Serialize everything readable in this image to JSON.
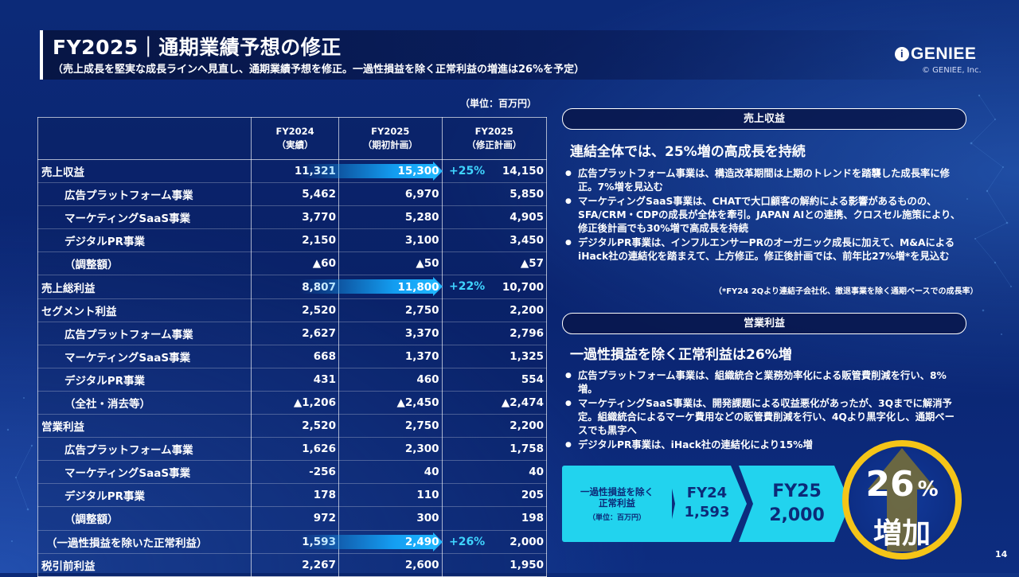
{
  "header": {
    "title": "FY2025｜通期業績予想の修正",
    "subtitle": "（売上成長を堅実な成長ラインへ見直し、通期業績予想を修正。一過性損益を除く正常利益の増進は26%を予定）"
  },
  "logo": {
    "text": "GENIEE",
    "copyright": "© GENIEE, Inc."
  },
  "table": {
    "unit": "（単位：百万円）",
    "headers": [
      {
        "l1": "FY2024",
        "l2": "（実績）"
      },
      {
        "l1": "FY2025",
        "l2": "（期初計画）"
      },
      {
        "l1": "FY2025",
        "l2": "（修正計画）"
      }
    ],
    "rows": [
      {
        "label": "売上収益",
        "v": [
          "11,321",
          "15,300",
          "14,150"
        ],
        "major": true,
        "sub": false,
        "growth": "+25%"
      },
      {
        "label": "広告プラットフォーム事業",
        "v": [
          "5,462",
          "6,970",
          "5,850"
        ],
        "major": false,
        "sub": true
      },
      {
        "label": "マーケティングSaaS事業",
        "v": [
          "3,770",
          "5,280",
          "4,905"
        ],
        "major": false,
        "sub": true
      },
      {
        "label": "デジタルPR事業",
        "v": [
          "2,150",
          "3,100",
          "3,450"
        ],
        "major": false,
        "sub": true
      },
      {
        "label": "（調整額）",
        "v": [
          "▲60",
          "▲50",
          "▲57"
        ],
        "major": false,
        "sub": true
      },
      {
        "label": "売上総利益",
        "v": [
          "8,807",
          "11,800",
          "10,700"
        ],
        "major": true,
        "sub": false,
        "growth": "+22%"
      },
      {
        "label": "セグメント利益",
        "v": [
          "2,520",
          "2,750",
          "2,200"
        ],
        "major": true,
        "sub": false
      },
      {
        "label": "広告プラットフォーム事業",
        "v": [
          "2,627",
          "3,370",
          "2,796"
        ],
        "major": false,
        "sub": true
      },
      {
        "label": "マーケティングSaaS事業",
        "v": [
          "668",
          "1,370",
          "1,325"
        ],
        "major": false,
        "sub": true
      },
      {
        "label": "デジタルPR事業",
        "v": [
          "431",
          "460",
          "554"
        ],
        "major": false,
        "sub": true
      },
      {
        "label": "（全社・消去等）",
        "v": [
          "▲1,206",
          "▲2,450",
          "▲2,474"
        ],
        "major": false,
        "sub": true
      },
      {
        "label": "営業利益",
        "v": [
          "2,520",
          "2,750",
          "2,200"
        ],
        "major": true,
        "sub": false
      },
      {
        "label": "広告プラットフォーム事業",
        "v": [
          "1,626",
          "2,300",
          "1,758"
        ],
        "major": false,
        "sub": true
      },
      {
        "label": "マーケティングSaaS事業",
        "v": [
          "-256",
          "40",
          "40"
        ],
        "major": false,
        "sub": true
      },
      {
        "label": "デジタルPR事業",
        "v": [
          "178",
          "110",
          "205"
        ],
        "major": false,
        "sub": true
      },
      {
        "label": "（調整額）",
        "v": [
          "972",
          "300",
          "198"
        ],
        "major": false,
        "sub": true
      },
      {
        "label": "（一過性損益を除いた正常利益）",
        "v": [
          "1,593",
          "2,490",
          "2,000"
        ],
        "major": true,
        "sub": false,
        "growth": "+26%",
        "indentSmall": true
      },
      {
        "label": "税引前利益",
        "v": [
          "2,267",
          "2,600",
          "1,950"
        ],
        "major": true,
        "sub": false
      }
    ]
  },
  "revenue": {
    "pill": "売上収益",
    "lead": "連結全体では、25%増の高成長を持続",
    "bullets": [
      "広告プラットフォーム事業は、構造改革期間は上期のトレンドを踏襲した成長率に修正。7%増を見込む",
      "マーケティングSaaS事業は、CHATで大口顧客の解約による影響があるものの、SFA/CRM・CDPの成長が全体を牽引。JAPAN AIとの連携、クロスセル施策により、修正後計画でも30%増で高成長を持続",
      "デジタルPR事業は、インフルエンサーPRのオーガニック成長に加えて、M&AによるiHack社の連結化を踏まえて、上方修正。修正後計画では、前年比27%増*を見込む"
    ],
    "note": "（*FY24 2Qより連結子会社化、撤退事業を除く通期ベースでの成長率）"
  },
  "operating": {
    "pill": "営業利益",
    "lead": "一過性損益を除く正常利益は26%増",
    "bullets": [
      "広告プラットフォーム事業は、組織統合と業務効率化による販管費削減を行い、8%増。",
      "マーケティングSaaS事業は、開発課題による収益悪化があったが、3Qまでに解消予定。組織統合によるマーケ費用などの販管費削減を行い、4Qより黒字化し、通期ベースでも黒字へ",
      "デジタルPR事業は、iHack社の連結化により15%増"
    ]
  },
  "kpi": {
    "label_l1": "一過性損益を除く",
    "label_l2": "正常利益",
    "label_unit": "（単位：百万円）",
    "fy24_label": "FY24",
    "fy24_value": "1,593",
    "fy25_label": "FY25",
    "fy25_value": "2,000",
    "circle_num": "26",
    "circle_pct": "%",
    "circle_text": "増加"
  },
  "page_number": "14",
  "colors": {
    "background": "#0c2a78",
    "accent": "#22d3ee",
    "highlight": "#1fb6ff",
    "ring": "#f5c518"
  }
}
